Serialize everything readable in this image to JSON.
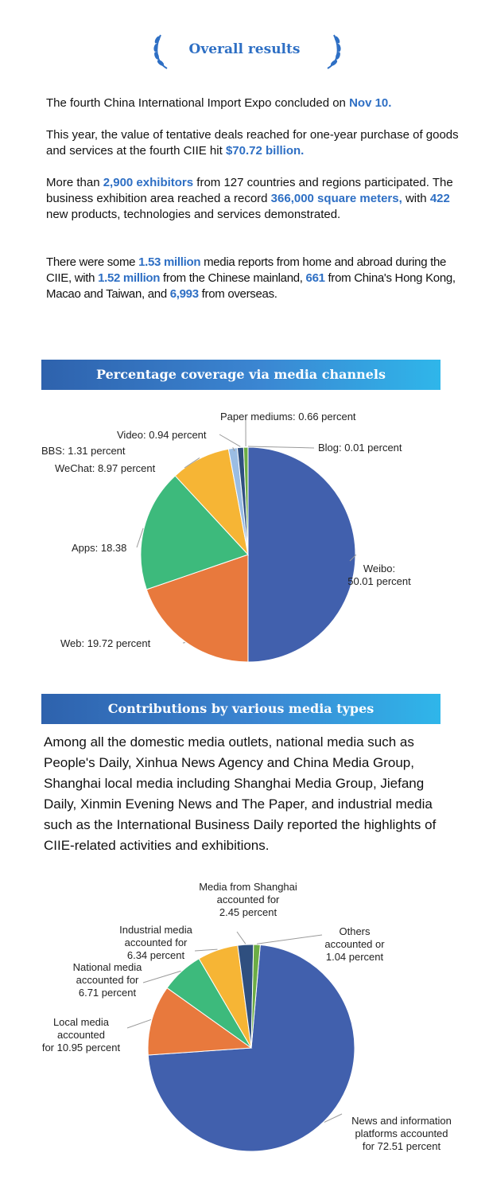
{
  "header": {
    "title": "Overall results"
  },
  "paragraphs": {
    "p1": {
      "t1": "The fourth China International Import Expo concluded on ",
      "h1": "Nov 10."
    },
    "p2": {
      "t1": "This year, the value of tentative deals reached for one-year purchase of goods and services at the fourth CIIE hit ",
      "h1": "$70.72 billion."
    },
    "p3": {
      "t1": "More than ",
      "h1": "2,900 exhibitors",
      "t2": " from 127 countries and regions participated. The business exhibition area reached a record ",
      "h2": "366,000 square meters,",
      "t3": " with ",
      "h3": "422",
      "t4": " new products, technologies and services demonstrated."
    },
    "p4": {
      "t1": "There were some ",
      "h1": "1.53 million",
      "t2": " media reports from home and abroad during the CIIE, with ",
      "h2": "1.52 million",
      "t3": " from the Chinese mainland, ",
      "h3": "661",
      "t4": " from China's Hong Kong, Macao and Taiwan, and ",
      "h4": "6,993",
      "t5": " from overseas."
    }
  },
  "section1": {
    "title": "Percentage coverage via media channels"
  },
  "section2": {
    "title": "Contributions by various media types",
    "body": "Among all the domestic media outlets, national media such as People's Daily, Xinhua News Agency and China Media Group, Shanghai local media including Shanghai Media Group, Jiefang Daily, Xinmin Evening News and The Paper, and industrial media such as the International Business Daily reported the highlights of CIIE-related activities and exhibitions."
  },
  "chart_data": [
    {
      "type": "pie",
      "title": "Percentage coverage via media channels",
      "start_angle_deg": 0,
      "direction": "clockwise",
      "slices": [
        {
          "name": "Weibo",
          "value": 50.01,
          "label_lines": [
            "Weibo:",
            "50.01 percent"
          ],
          "color": "#4160ad"
        },
        {
          "name": "Web",
          "value": 19.72,
          "label_lines": [
            "Web: 19.72 percent"
          ],
          "color": "#e8793d"
        },
        {
          "name": "Apps",
          "value": 18.38,
          "label_lines": [
            "Apps: 18.38"
          ],
          "color": "#3dba7c"
        },
        {
          "name": "WeChat",
          "value": 8.97,
          "label_lines": [
            "WeChat: 8.97 percent"
          ],
          "color": "#f6b535"
        },
        {
          "name": "BBS",
          "value": 1.31,
          "label_lines": [
            "BBS: 1.31 percent"
          ],
          "color": "#9bbde3"
        },
        {
          "name": "Video",
          "value": 0.94,
          "label_lines": [
            "Video: 0.94 percent"
          ],
          "color": "#2f4f7f"
        },
        {
          "name": "Paper mediums",
          "value": 0.66,
          "label_lines": [
            "Paper mediums: 0.66 percent"
          ],
          "color": "#6cad45"
        },
        {
          "name": "Blog",
          "value": 0.01,
          "label_lines": [
            "Blog:  0.01 percent"
          ],
          "color": "#c9c9c9"
        }
      ]
    },
    {
      "type": "pie",
      "title": "",
      "start_angle_deg": 5,
      "direction": "clockwise",
      "slices": [
        {
          "name": "News and information platforms",
          "value": 72.51,
          "label_lines": [
            "News and information",
            "platforms accounted",
            "for 72.51 percent"
          ],
          "color": "#4160ad"
        },
        {
          "name": "Local media",
          "value": 10.95,
          "label_lines": [
            "Local media",
            "accounted",
            "for 10.95 percent"
          ],
          "color": "#e8793d"
        },
        {
          "name": "National media",
          "value": 6.71,
          "label_lines": [
            "National media",
            "accounted for",
            "6.71 percent"
          ],
          "color": "#3dba7c"
        },
        {
          "name": "Industrial media",
          "value": 6.34,
          "label_lines": [
            "Industrial media",
            "accounted for",
            "6.34 percent"
          ],
          "color": "#f6b535"
        },
        {
          "name": "Media from Shanghai",
          "value": 2.45,
          "label_lines": [
            "Media from Shanghai",
            "accounted for",
            "2.45 percent"
          ],
          "color": "#2f4f7f"
        },
        {
          "name": "Others",
          "value": 1.04,
          "label_lines": [
            "Others",
            "accounted or",
            "1.04 percent"
          ],
          "color": "#6cad45"
        }
      ]
    }
  ]
}
